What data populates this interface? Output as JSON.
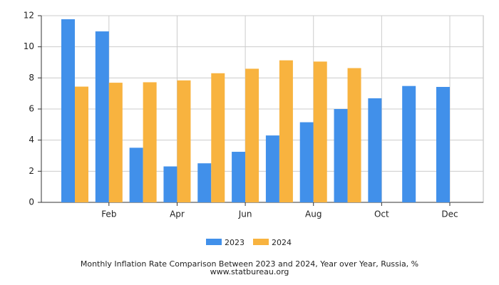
{
  "chart_data": {
    "type": "bar",
    "title": "Monthly Inflation Rate Comparison Between 2023 and 2024, Year over Year, Russia, %",
    "subtitle": "www.statbureau.org",
    "categories": [
      null,
      "Feb",
      null,
      "Apr",
      null,
      "Jun",
      null,
      "Aug",
      null,
      "Oct",
      null,
      "Dec"
    ],
    "series": [
      {
        "name": "2023",
        "color": "#4190ea",
        "values": [
          11.77,
          10.99,
          3.51,
          2.31,
          2.51,
          3.25,
          4.3,
          5.15,
          6.0,
          6.69,
          7.48,
          7.42
        ]
      },
      {
        "name": "2024",
        "color": "#f8b33f",
        "values": [
          7.44,
          7.69,
          7.72,
          7.84,
          8.3,
          8.59,
          9.13,
          9.05,
          8.63,
          null,
          null,
          null
        ]
      }
    ],
    "ylim": [
      0,
      12
    ],
    "yticks": [
      0,
      2,
      4,
      6,
      8,
      10,
      12
    ],
    "grid": true,
    "legend": "bottom"
  }
}
